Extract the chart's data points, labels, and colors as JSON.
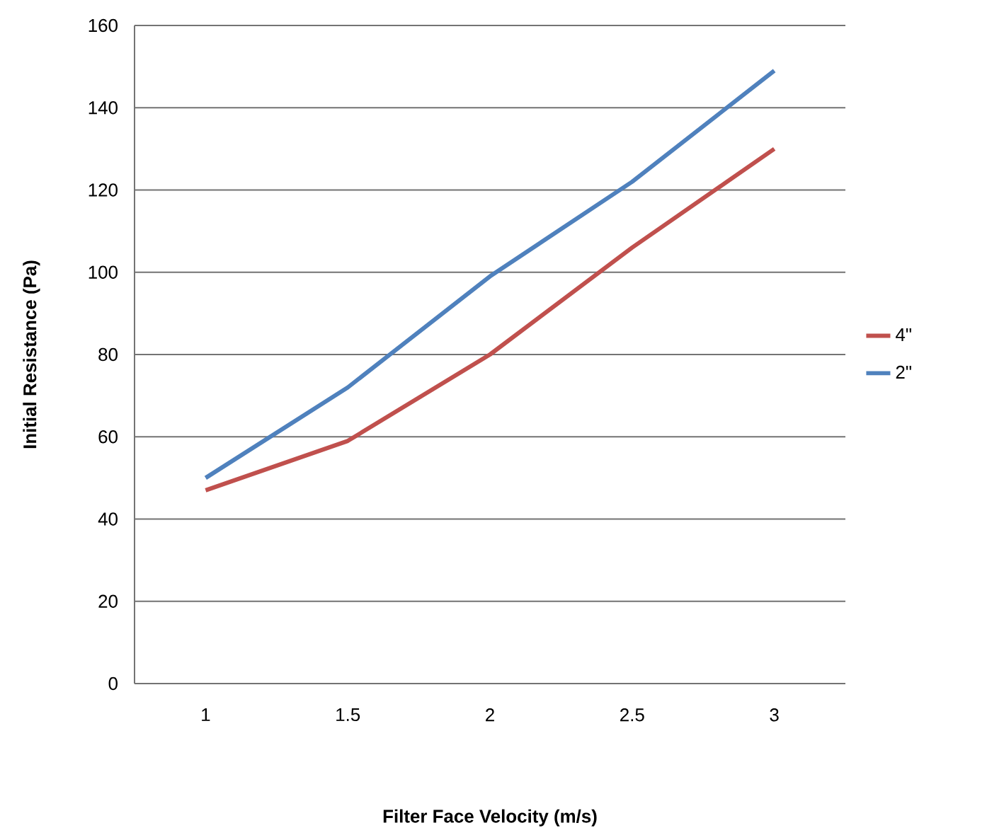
{
  "chart_data": {
    "type": "line",
    "xlabel": "Filter Face Velocity (m/s)",
    "ylabel": "Initial Resistance  (Pa)",
    "categories": [
      "1",
      "1.5",
      "2",
      "2.5",
      "3"
    ],
    "series": [
      {
        "name": "4\"",
        "color": "#c0504d",
        "values": [
          47,
          59,
          80,
          106,
          130
        ]
      },
      {
        "name": "2\"",
        "color": "#4f81bd",
        "values": [
          50,
          72,
          99,
          122,
          149
        ]
      }
    ],
    "ylim": [
      0,
      160
    ],
    "yticks": [
      0,
      20,
      40,
      60,
      80,
      100,
      120,
      140,
      160
    ],
    "grid": "y",
    "legend": "right",
    "marker": "none",
    "line_style": "solid"
  }
}
